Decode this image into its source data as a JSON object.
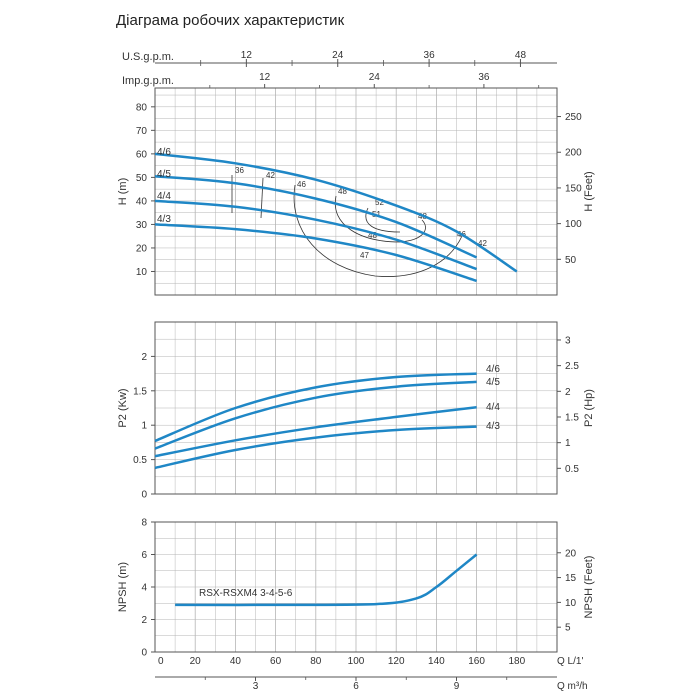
{
  "title": "Діаграма робочих характеристик",
  "colors": {
    "curve": "#1f87c6",
    "grid": "#b5b5b5",
    "frame": "#555555",
    "efficiency": "#333333"
  },
  "chart_data": [
    {
      "type": "line",
      "name_panel": "head",
      "x_axes": [
        {
          "label": "U.S.g.p.m.",
          "ticks": [
            12,
            24,
            36,
            48
          ]
        },
        {
          "label": "Imp.g.p.m.",
          "ticks": [
            12,
            24,
            36
          ]
        }
      ],
      "ylabel": "H (m)",
      "yticks": [
        10,
        20,
        30,
        40,
        50,
        60,
        70,
        80
      ],
      "ylim": [
        0,
        88
      ],
      "xlim": [
        0,
        200
      ],
      "ylabel_right": "H (Feet)",
      "yticks_right": [
        50,
        100,
        150,
        200,
        250
      ],
      "grid": true,
      "series": [
        {
          "name": "4/6",
          "x": [
            0,
            40,
            80,
            120,
            150,
            180
          ],
          "y": [
            60,
            56,
            49,
            38,
            27,
            10
          ]
        },
        {
          "name": "4/5",
          "x": [
            0,
            40,
            80,
            120,
            160
          ],
          "y": [
            50.5,
            47.5,
            41,
            31,
            16
          ]
        },
        {
          "name": "4/4",
          "x": [
            0,
            40,
            80,
            120,
            160
          ],
          "y": [
            40,
            37.5,
            32,
            23.5,
            11
          ]
        },
        {
          "name": "4/3",
          "x": [
            0,
            40,
            80,
            120,
            160
          ],
          "y": [
            30,
            28,
            24,
            17,
            6
          ]
        }
      ],
      "efficiency_labels": [
        "36",
        "42",
        "46",
        "48",
        "52",
        "51",
        "48",
        "48",
        "47",
        "46",
        "42"
      ]
    },
    {
      "type": "line",
      "name_panel": "power",
      "ylabel": "P2 (Kw)",
      "yticks": [
        0,
        0.5,
        1,
        1.5,
        2
      ],
      "ylim": [
        0,
        2.5
      ],
      "xlim": [
        0,
        200
      ],
      "ylabel_right": "P2 (Hp)",
      "yticks_right": [
        0.5,
        1,
        1.5,
        2,
        2.5,
        3
      ],
      "grid": true,
      "series": [
        {
          "name": "4/6",
          "x": [
            0,
            40,
            80,
            120,
            160
          ],
          "y": [
            0.77,
            1.25,
            1.55,
            1.7,
            1.75
          ]
        },
        {
          "name": "4/5",
          "x": [
            0,
            40,
            80,
            120,
            160
          ],
          "y": [
            0.66,
            1.1,
            1.4,
            1.56,
            1.63
          ]
        },
        {
          "name": "4/4",
          "x": [
            0,
            40,
            80,
            120,
            160
          ],
          "y": [
            0.55,
            0.78,
            0.97,
            1.12,
            1.26
          ]
        },
        {
          "name": "4/3",
          "x": [
            0,
            40,
            80,
            120,
            160
          ],
          "y": [
            0.38,
            0.64,
            0.82,
            0.93,
            0.98
          ]
        }
      ]
    },
    {
      "type": "line",
      "name_panel": "npsh",
      "ylabel": "NPSH (m)",
      "yticks": [
        0,
        2,
        4,
        6,
        8
      ],
      "ylim": [
        0,
        8
      ],
      "ylabel_right": "NPSH (Feet)",
      "yticks_right": [
        5,
        10,
        15,
        20
      ],
      "xlabel": "Q  L/1'",
      "xticks": [
        20,
        40,
        60,
        80,
        100,
        120,
        140,
        160,
        180
      ],
      "xlim": [
        0,
        200
      ],
      "xlabel2": "Q  m³/h",
      "xticks2": [
        3,
        6,
        9
      ],
      "grid": true,
      "annotation": "RSX-RSXM4 3-4-5-6",
      "series": [
        {
          "name": "",
          "x": [
            10,
            60,
            110,
            130,
            140,
            150,
            160
          ],
          "y": [
            2.9,
            2.9,
            2.95,
            3.3,
            4,
            5,
            6
          ]
        }
      ]
    }
  ]
}
